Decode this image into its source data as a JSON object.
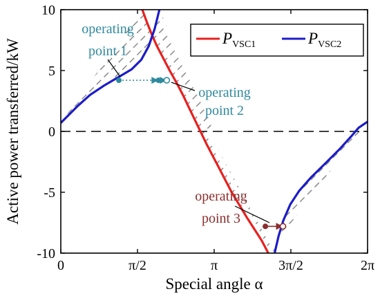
{
  "chart_data": {
    "type": "line",
    "xlabel": "Special angle α",
    "ylabel": "Active power transferred/kW",
    "xlim": [
      0,
      6.2832
    ],
    "ylim": [
      -10,
      10
    ],
    "x_ticks": [
      {
        "value": 0,
        "label": "0"
      },
      {
        "value": 1.5708,
        "label": "π/2"
      },
      {
        "value": 3.1416,
        "label": "π"
      },
      {
        "value": 4.7124,
        "label": "3π/2"
      },
      {
        "value": 6.2832,
        "label": "2π"
      }
    ],
    "y_ticks": [
      {
        "value": 10,
        "label": "10"
      },
      {
        "value": 5,
        "label": "5"
      },
      {
        "value": 0,
        "label": "0"
      },
      {
        "value": -5,
        "label": "-5"
      },
      {
        "value": -10,
        "label": "-10"
      }
    ],
    "legend": {
      "placement": "top-right",
      "entries": [
        {
          "main": "P",
          "sub": "VSC1",
          "color": "#e8201f"
        },
        {
          "main": "P",
          "sub": "VSC2",
          "color": "#1c1cc8"
        }
      ]
    },
    "series": [
      {
        "id": "P_VSC1",
        "color": "#e8201f",
        "points": [
          [
            1.67,
            10
          ],
          [
            1.76,
            9
          ],
          [
            1.86,
            8
          ],
          [
            1.97,
            7
          ],
          [
            2.1,
            6
          ],
          [
            2.23,
            5
          ],
          [
            2.37,
            4
          ],
          [
            2.5,
            3
          ],
          [
            2.62,
            2
          ],
          [
            2.74,
            1
          ],
          [
            2.86,
            0
          ],
          [
            2.98,
            -1
          ],
          [
            3.11,
            -2
          ],
          [
            3.24,
            -3
          ],
          [
            3.37,
            -4
          ],
          [
            3.5,
            -5
          ],
          [
            3.65,
            -6
          ],
          [
            3.8,
            -7
          ],
          [
            3.96,
            -8
          ],
          [
            4.12,
            -9
          ],
          [
            4.25,
            -10
          ]
        ]
      },
      {
        "id": "P_VSC2_left",
        "color": "#1c1cc8",
        "points": [
          [
            0,
            0.7
          ],
          [
            0.15,
            1.3
          ],
          [
            0.35,
            2.1
          ],
          [
            0.6,
            3
          ],
          [
            0.9,
            3.8
          ],
          [
            1.2,
            4.5
          ],
          [
            1.45,
            5.1
          ],
          [
            1.65,
            5.9
          ],
          [
            1.8,
            7
          ],
          [
            1.92,
            8.4
          ],
          [
            2.02,
            10
          ]
        ]
      },
      {
        "id": "P_VSC2_right",
        "color": "#1c1cc8",
        "points": [
          [
            4.38,
            -10
          ],
          [
            4.46,
            -8.6
          ],
          [
            4.56,
            -7.3
          ],
          [
            4.7,
            -6
          ],
          [
            4.88,
            -4.9
          ],
          [
            5.12,
            -3.8
          ],
          [
            5.4,
            -2.7
          ],
          [
            5.7,
            -1.5
          ],
          [
            5.95,
            -0.4
          ],
          [
            6.1,
            0.3
          ],
          [
            6.2832,
            0.8
          ]
        ]
      }
    ],
    "annotations": [
      {
        "text": [
          "operating",
          "point 1"
        ],
        "color": "#2f8a9e",
        "x": 1.19,
        "y": 4.2,
        "tip_x": 1.3,
        "tip_y": 4.2
      },
      {
        "text": [
          "operating",
          "point 2"
        ],
        "color": "#2f8a9e",
        "x": 2.0,
        "y": 4.2,
        "tip_x": 2.0,
        "tip_y": 4.2
      },
      {
        "text": [
          "operating",
          "point 3"
        ],
        "color": "#8b2d2d",
        "x": 4.19,
        "y": -7.8,
        "tip_x": 4.14,
        "tip_y": -7.8
      }
    ],
    "markers": [
      {
        "type": "dot",
        "x": 1.19,
        "y": 4.2,
        "color": "#2f8a9e"
      },
      {
        "type": "dot",
        "x": 2.0,
        "y": 4.2,
        "color": "#2f8a9e"
      },
      {
        "type": "dot",
        "x": 4.19,
        "y": -7.8,
        "color": "#8b2d2d"
      },
      {
        "type": "ring",
        "x": 2.17,
        "y": 4.2,
        "color": "#2f8a9e"
      },
      {
        "type": "ring",
        "x": 4.55,
        "y": -7.8,
        "color": "#8b2d2d"
      }
    ],
    "arrows": [
      {
        "x1": 1.19,
        "y1": 4.2,
        "x2": 2.0,
        "y2": 4.2,
        "style": "dotted",
        "color": "#2f8a9e"
      },
      {
        "x1": 2.0,
        "y1": 4.2,
        "x2": 2.17,
        "y2": 4.2,
        "style": "solid",
        "color": "#2f8a9e"
      },
      {
        "x1": 4.19,
        "y1": -7.8,
        "x2": 4.55,
        "y2": -7.8,
        "style": "solid",
        "color": "#8b2d2d"
      }
    ],
    "reference_line": {
      "y": 0,
      "style": "dashed"
    },
    "hatched_regions": [
      {
        "between": [
          "P_VSC2_left",
          "P_VSC1"
        ],
        "color": "#8a8a8a"
      },
      {
        "between": [
          "P_VSC1",
          "P_VSC2_right"
        ],
        "color": "#8a8a8a"
      }
    ],
    "grid": false
  }
}
